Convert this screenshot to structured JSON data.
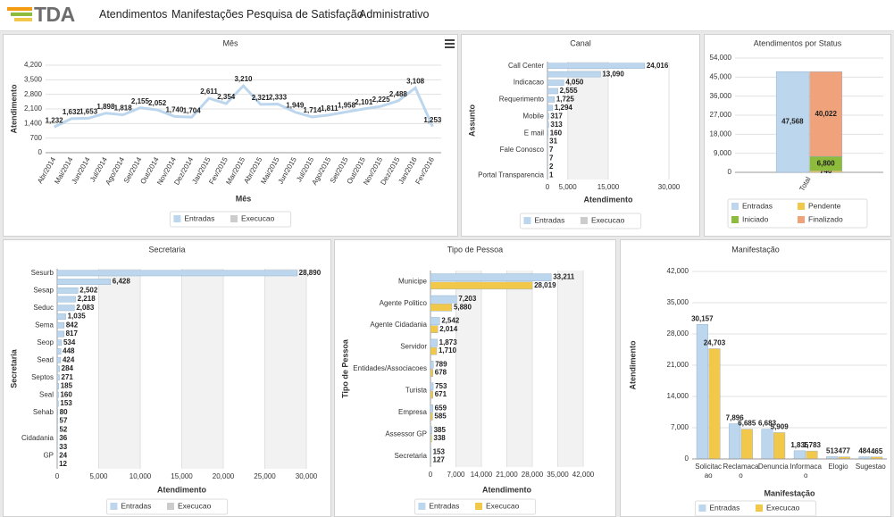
{
  "nav": {
    "logo": "TDA",
    "items": [
      "Atendimentos",
      "Manifestações",
      "Pesquisa de Satisfação",
      "Administrativo"
    ]
  },
  "chart_data": [
    {
      "type": "line",
      "title": "Mês",
      "x_label": "Mês",
      "y_label": "Atendimento",
      "categories": [
        "Abr/2014",
        "Mai/2014",
        "Jun/2014",
        "Jul/2014",
        "Ago/2014",
        "Set/2014",
        "Out/2014",
        "Nov/2014",
        "Dez/2014",
        "Jan/2015",
        "Fev/2015",
        "Mar/2015",
        "Abr/2015",
        "Mai/2015",
        "Jun/2015",
        "Jul/2015",
        "Ago/2015",
        "Set/2015",
        "Out/2015",
        "Nov/2015",
        "Dez/2015",
        "Jan/2016",
        "Fev/2016"
      ],
      "series": [
        {
          "name": "Entradas",
          "color": "#bcd6ee",
          "values": [
            1232,
            1632,
            1653,
            1898,
            1818,
            2155,
            2052,
            1740,
            1704,
            2611,
            2354,
            3210,
            2321,
            2333,
            1949,
            1714,
            1811,
            1958,
            2101,
            2225,
            2488,
            3108,
            1253
          ],
          "value_labels": [
            "1,232",
            "1,632",
            "1,653",
            "1,898",
            "1,818",
            "2,155",
            "2,052",
            "1,740",
            "1,704",
            "2,611",
            "2,354",
            "3,210",
            "2,321",
            "2,333",
            "1,949",
            "1,714",
            "1,811",
            "1,958",
            "2,101",
            "2,225",
            "2,488",
            "3,108",
            "1,253"
          ]
        },
        {
          "name": "Execucao",
          "color": "#cccccc",
          "hidden": true
        }
      ],
      "ylim": [
        0,
        4200
      ],
      "yticks": [
        0,
        700,
        {
          "value": 1400,
          "label": "1,400"
        },
        {
          "value": 2100,
          "label": "2,100"
        },
        {
          "value": 2800,
          "label": "2,800"
        },
        {
          "value": 3500,
          "label": "3,500"
        },
        {
          "value": 4200,
          "label": "4,200"
        }
      ],
      "grid": true
    },
    {
      "type": "bar",
      "title": "Canal",
      "x_label": "Atendimento",
      "y_label": "Assunto",
      "categories": [
        "Call Center",
        null,
        "Indicacao",
        null,
        "Requerimento",
        null,
        "Mobile",
        null,
        "E mail",
        null,
        "Fale Conosco",
        null,
        null,
        "Portal Transparencia"
      ],
      "series": [
        {
          "name": "Entradas",
          "color": "#bcd6ee",
          "values": [
            24016,
            13090,
            4050,
            2555,
            1725,
            1294,
            317,
            313,
            160,
            31,
            7,
            7,
            2,
            1
          ],
          "value_labels": [
            "24,016",
            "13,090",
            "4,050",
            "2,555",
            "1,725",
            "1,294",
            "317",
            "313",
            "160",
            "31",
            "7",
            "7",
            "2",
            "1"
          ]
        },
        {
          "name": "Execucao",
          "color": "#cccccc",
          "hidden": true
        }
      ],
      "xlim": [
        0,
        30000
      ],
      "xticks": [
        0,
        {
          "value": 5000,
          "label": "5,000"
        },
        {
          "value": 15000,
          "label": "15,000"
        },
        {
          "value": 30000,
          "label": "30,000"
        }
      ],
      "grid": true,
      "alternate_grid_color": "#f2f2f2"
    },
    {
      "type": "column",
      "title": "Atendimentos por Status",
      "stacked": true,
      "categories": [
        "Total"
      ],
      "series": [
        {
          "name": "Entradas",
          "color": "#bcd6ee",
          "stack": 0,
          "values": [
            47568
          ],
          "value_labels": [
            "47,568"
          ]
        },
        {
          "name": "Pendente",
          "color": "#f2c84b",
          "stack": 1,
          "values": [
            746
          ],
          "value_labels": [
            "746"
          ]
        },
        {
          "name": "Iniciado",
          "color": "#8dbb3c",
          "stack": 1,
          "values": [
            6800
          ],
          "value_labels": [
            "6,800"
          ]
        },
        {
          "name": "Finalizado",
          "color": "#f0a27a",
          "stack": 1,
          "values": [
            40022
          ],
          "value_labels": [
            "40,022"
          ]
        }
      ],
      "ylim": [
        0,
        54000
      ],
      "yticks": [
        0,
        {
          "value": 9000,
          "label": "9,000"
        },
        {
          "value": 18000,
          "label": "18,000"
        },
        {
          "value": 27000,
          "label": "27,000"
        },
        {
          "value": 36000,
          "label": "36,000"
        },
        {
          "value": 45000,
          "label": "45,000"
        },
        {
          "value": 54000,
          "label": "54,000"
        }
      ],
      "grid": true
    },
    {
      "type": "bar",
      "title": "Secretaria",
      "x_label": "Atendimento",
      "y_label": "Secretaria",
      "categories": [
        "Sesurb",
        null,
        "Sesap",
        null,
        "Seduc",
        null,
        "Sema",
        null,
        "Seop",
        null,
        "Sead",
        null,
        "Septos",
        null,
        "Seal",
        null,
        "Sehab",
        null,
        null,
        "Cidadania",
        null,
        "GP",
        null
      ],
      "series": [
        {
          "name": "Entradas",
          "color": "#bcd6ee",
          "values": [
            28890,
            6428,
            2502,
            2218,
            2083,
            1035,
            842,
            817,
            534,
            448,
            424,
            284,
            271,
            185,
            160,
            153,
            80,
            57,
            52,
            36,
            33,
            24,
            12
          ],
          "value_labels": [
            "28,890",
            "6,428",
            "2,502",
            "2,218",
            "2,083",
            "1,035",
            "842",
            "817",
            "534",
            "448",
            "424",
            "284",
            "271",
            "185",
            "160",
            "153",
            "80",
            "57",
            "52",
            "36",
            "33",
            "24",
            "12"
          ]
        },
        {
          "name": "Execucao",
          "color": "#cccccc",
          "hidden": true
        }
      ],
      "xlim": [
        0,
        30000
      ],
      "xticks": [
        0,
        {
          "value": 5000,
          "label": "5,000"
        },
        {
          "value": 10000,
          "label": "10,000"
        },
        {
          "value": 15000,
          "label": "15,000"
        },
        {
          "value": 20000,
          "label": "20,000"
        },
        {
          "value": 25000,
          "label": "25,000"
        },
        {
          "value": 30000,
          "label": "30,000"
        }
      ],
      "grid": true,
      "alternate_grid_color": "#f2f2f2"
    },
    {
      "type": "bar",
      "title": "Tipo de Pessoa",
      "x_label": "Atendimento",
      "y_label": "Tipo de Pessoa",
      "categories": [
        "Municipe",
        "Agente Politico",
        "Agente Cidadania",
        "Servidor",
        "Entidades/Associacoes",
        "Turista",
        "Empresa",
        "Assessor GP",
        "Secretaria"
      ],
      "series": [
        {
          "name": "Entradas",
          "color": "#bcd6ee",
          "values": [
            33211,
            7203,
            2542,
            1873,
            789,
            753,
            659,
            385,
            153
          ],
          "value_labels": [
            "33,211",
            "7,203",
            "2,542",
            "1,873",
            "789",
            "753",
            "659",
            "385",
            "153"
          ]
        },
        {
          "name": "Execucao",
          "color": "#f2c84b",
          "values": [
            28019,
            5880,
            2014,
            1710,
            678,
            671,
            585,
            338,
            127
          ],
          "value_labels": [
            "28,019",
            "5,880",
            "2,014",
            "1,710",
            "678",
            "671",
            "585",
            "338",
            "127"
          ]
        }
      ],
      "xlim": [
        0,
        42000
      ],
      "xticks": [
        0,
        {
          "value": 7000,
          "label": "7,000"
        },
        {
          "value": 14000,
          "label": "14,000"
        },
        {
          "value": 21000,
          "label": "21,000"
        },
        {
          "value": 28000,
          "label": "28,000"
        },
        {
          "value": 35000,
          "label": "35,000"
        },
        {
          "value": 42000,
          "label": "42,000"
        }
      ],
      "grid": true,
      "alternate_grid_color": "#f2f2f2"
    },
    {
      "type": "column",
      "title": "Manifestação",
      "x_label": "Manifestação",
      "y_label": "Atendimento",
      "categories": [
        "Solicitacao",
        "Reclamacao",
        "Denuncia",
        "Informacao",
        "Elogio",
        "Sugestao"
      ],
      "series": [
        {
          "name": "Entradas",
          "color": "#bcd6ee",
          "values": [
            30157,
            7896,
            6683,
            1835,
            513,
            484
          ],
          "value_labels": [
            "30,157",
            "7,896",
            "6,683",
            "1,835",
            "513",
            "484"
          ]
        },
        {
          "name": "Execucao",
          "color": "#f2c84b",
          "values": [
            24703,
            6685,
            5909,
            1783,
            477,
            465
          ],
          "value_labels": [
            "24,703",
            "6,685",
            "5,909",
            "1,783",
            "477",
            "465"
          ]
        }
      ],
      "ylim": [
        0,
        42000
      ],
      "yticks": [
        0,
        {
          "value": 7000,
          "label": "7,000"
        },
        {
          "value": 14000,
          "label": "14,000"
        },
        {
          "value": 21000,
          "label": "21,000"
        },
        {
          "value": 28000,
          "label": "28,000"
        },
        {
          "value": 35000,
          "label": "35,000"
        },
        {
          "value": 42000,
          "label": "42,000"
        }
      ],
      "grid": true
    }
  ]
}
